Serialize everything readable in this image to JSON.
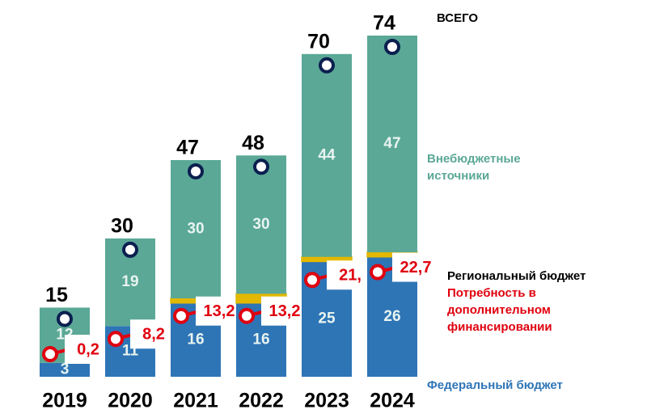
{
  "chart_data": {
    "type": "bar",
    "categories": [
      "2019",
      "2020",
      "2021",
      "2022",
      "2023",
      "2024"
    ],
    "series": [
      {
        "name": "Федеральный бюджет",
        "color": "#2e75b6",
        "values": [
          3,
          11,
          16,
          16,
          25,
          26
        ]
      },
      {
        "name": "Региональный бюджет",
        "color": "#e3b800",
        "values": [
          0,
          0,
          1,
          2,
          1,
          1
        ]
      },
      {
        "name": "Внебюджетные источники",
        "color": "#5ba897",
        "values": [
          12,
          19,
          30,
          30,
          44,
          47
        ]
      }
    ],
    "total": {
      "name": "ВСЕГО",
      "color": "#0b1f4f",
      "values": [
        15,
        30,
        47,
        48,
        70,
        74
      ]
    },
    "need": {
      "name": "Потребность в дополнительном финансировании",
      "color": "#e0000f",
      "values": [
        0.2,
        8.2,
        13.2,
        13.2,
        21,
        22.7
      ],
      "value_labels": [
        "0,2",
        "8,2",
        "13,2",
        "13,2",
        "21,",
        "22,7"
      ]
    }
  }
}
